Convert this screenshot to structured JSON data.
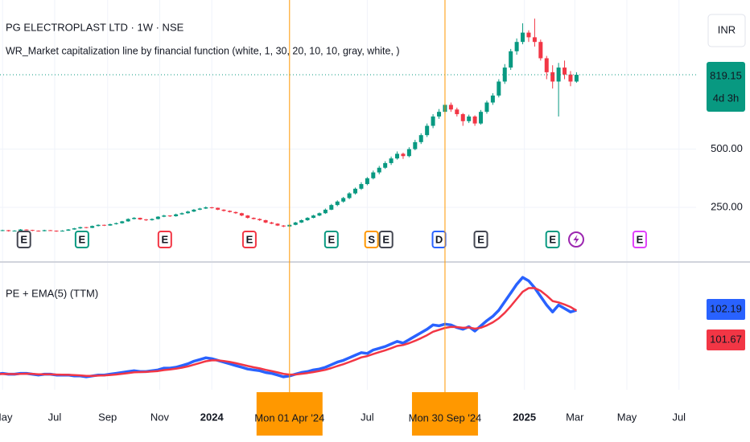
{
  "header": {
    "symbol_title": "PG ELECTROPLAST LTD · 1W · NSE",
    "indicator_title": "WR_Market capitalization line by financial function (white, 1, 30, 20, 10, 10, gray, white, )",
    "currency": "INR"
  },
  "chart_data": [
    {
      "type": "candlestick",
      "up_color": "#089981",
      "down_color": "#f23645",
      "x": [
        "2023-04-24",
        "2023-05-01",
        "2023-05-08",
        "2023-05-15",
        "2023-05-22",
        "2023-05-29",
        "2023-06-05",
        "2023-06-12",
        "2023-06-19",
        "2023-06-26",
        "2023-07-03",
        "2023-07-10",
        "2023-07-17",
        "2023-07-24",
        "2023-07-31",
        "2023-08-07",
        "2023-08-14",
        "2023-08-21",
        "2023-08-28",
        "2023-09-04",
        "2023-09-11",
        "2023-09-18",
        "2023-09-25",
        "2023-10-02",
        "2023-10-09",
        "2023-10-16",
        "2023-10-23",
        "2023-10-30",
        "2023-11-06",
        "2023-11-13",
        "2023-11-20",
        "2023-11-27",
        "2023-12-04",
        "2023-12-11",
        "2023-12-18",
        "2023-12-25",
        "2024-01-01",
        "2024-01-08",
        "2024-01-15",
        "2024-01-22",
        "2024-01-29",
        "2024-02-05",
        "2024-02-12",
        "2024-02-19",
        "2024-02-26",
        "2024-03-04",
        "2024-03-11",
        "2024-03-18",
        "2024-03-25",
        "2024-04-01",
        "2024-04-08",
        "2024-04-15",
        "2024-04-22",
        "2024-04-29",
        "2024-05-06",
        "2024-05-13",
        "2024-05-20",
        "2024-05-27",
        "2024-06-03",
        "2024-06-10",
        "2024-06-17",
        "2024-06-24",
        "2024-07-01",
        "2024-07-08",
        "2024-07-15",
        "2024-07-22",
        "2024-07-29",
        "2024-08-05",
        "2024-08-12",
        "2024-08-19",
        "2024-08-26",
        "2024-09-02",
        "2024-09-09",
        "2024-09-16",
        "2024-09-23",
        "2024-09-30",
        "2024-10-07",
        "2024-10-14",
        "2024-10-21",
        "2024-10-28",
        "2024-11-04",
        "2024-11-11",
        "2024-11-18",
        "2024-11-25",
        "2024-12-02",
        "2024-12-09",
        "2024-12-16",
        "2024-12-23",
        "2024-12-30",
        "2025-01-06",
        "2025-01-13",
        "2025-01-20",
        "2025-01-27",
        "2025-02-03",
        "2025-02-10",
        "2025-02-17",
        "2025-02-24",
        "2025-03-03"
      ],
      "ohlc": [
        [
          148,
          153,
          146,
          150
        ],
        [
          150,
          154,
          148,
          152
        ],
        [
          152,
          153,
          146,
          148
        ],
        [
          148,
          152,
          147,
          150
        ],
        [
          150,
          157,
          149,
          155
        ],
        [
          155,
          156,
          151,
          153
        ],
        [
          153,
          154,
          148,
          150
        ],
        [
          150,
          151,
          146,
          148
        ],
        [
          148,
          154,
          147,
          152
        ],
        [
          152,
          153,
          149,
          150
        ],
        [
          150,
          151,
          145,
          147
        ],
        [
          147,
          152,
          146,
          150
        ],
        [
          150,
          157,
          149,
          155
        ],
        [
          155,
          162,
          154,
          160
        ],
        [
          160,
          167,
          158,
          165
        ],
        [
          165,
          166,
          160,
          162
        ],
        [
          162,
          172,
          161,
          170
        ],
        [
          170,
          177,
          168,
          175
        ],
        [
          175,
          176,
          170,
          172
        ],
        [
          172,
          180,
          171,
          178
        ],
        [
          178,
          185,
          176,
          182
        ],
        [
          182,
          192,
          180,
          190
        ],
        [
          190,
          203,
          188,
          200
        ],
        [
          200,
          208,
          198,
          205
        ],
        [
          205,
          206,
          196,
          198
        ],
        [
          198,
          200,
          192,
          195
        ],
        [
          195,
          203,
          193,
          200
        ],
        [
          200,
          212,
          198,
          210
        ],
        [
          210,
          218,
          208,
          215
        ],
        [
          215,
          216,
          209,
          212
        ],
        [
          212,
          223,
          210,
          220
        ],
        [
          220,
          228,
          218,
          225
        ],
        [
          225,
          235,
          223,
          232
        ],
        [
          232,
          243,
          230,
          240
        ],
        [
          240,
          248,
          238,
          245
        ],
        [
          245,
          254,
          243,
          250
        ],
        [
          250,
          252,
          245,
          248
        ],
        [
          248,
          249,
          238,
          240
        ],
        [
          240,
          242,
          232,
          235
        ],
        [
          235,
          237,
          228,
          230
        ],
        [
          230,
          232,
          222,
          225
        ],
        [
          225,
          227,
          212,
          215
        ],
        [
          215,
          217,
          202,
          205
        ],
        [
          205,
          207,
          198,
          200
        ],
        [
          200,
          203,
          192,
          195
        ],
        [
          195,
          197,
          182,
          185
        ],
        [
          185,
          188,
          178,
          180
        ],
        [
          180,
          182,
          170,
          172
        ],
        [
          172,
          174,
          165,
          168
        ],
        [
          168,
          178,
          166,
          175
        ],
        [
          175,
          188,
          173,
          185
        ],
        [
          185,
          198,
          183,
          195
        ],
        [
          195,
          208,
          192,
          205
        ],
        [
          205,
          218,
          203,
          215
        ],
        [
          215,
          228,
          212,
          225
        ],
        [
          225,
          245,
          222,
          240
        ],
        [
          240,
          265,
          238,
          260
        ],
        [
          260,
          280,
          255,
          275
        ],
        [
          275,
          295,
          270,
          290
        ],
        [
          290,
          315,
          285,
          310
        ],
        [
          310,
          335,
          305,
          330
        ],
        [
          330,
          358,
          325,
          350
        ],
        [
          350,
          380,
          345,
          375
        ],
        [
          375,
          408,
          370,
          400
        ],
        [
          400,
          428,
          392,
          420
        ],
        [
          420,
          448,
          415,
          440
        ],
        [
          440,
          468,
          432,
          460
        ],
        [
          460,
          490,
          455,
          480
        ],
        [
          480,
          485,
          458,
          470
        ],
        [
          470,
          508,
          465,
          500
        ],
        [
          500,
          540,
          495,
          530
        ],
        [
          530,
          568,
          522,
          560
        ],
        [
          560,
          610,
          552,
          600
        ],
        [
          600,
          650,
          590,
          640
        ],
        [
          640,
          672,
          630,
          660
        ],
        [
          660,
          698,
          650,
          690
        ],
        [
          690,
          700,
          660,
          670
        ],
        [
          670,
          678,
          640,
          650
        ],
        [
          650,
          655,
          600,
          620
        ],
        [
          620,
          648,
          612,
          640
        ],
        [
          640,
          645,
          600,
          610
        ],
        [
          610,
          668,
          605,
          660
        ],
        [
          660,
          708,
          652,
          700
        ],
        [
          700,
          740,
          690,
          730
        ],
        [
          730,
          800,
          722,
          790
        ],
        [
          790,
          865,
          780,
          850
        ],
        [
          850,
          930,
          840,
          920
        ],
        [
          920,
          975,
          905,
          960
        ],
        [
          960,
          1040,
          950,
          1000
        ],
        [
          1000,
          1010,
          960,
          980
        ],
        [
          980,
          1060,
          940,
          960
        ],
        [
          960,
          970,
          880,
          890
        ],
        [
          890,
          900,
          800,
          830
        ],
        [
          830,
          860,
          760,
          790
        ],
        [
          790,
          870,
          640,
          850
        ],
        [
          850,
          880,
          800,
          820
        ],
        [
          820,
          835,
          770,
          790
        ],
        [
          790,
          830,
          785,
          819.15
        ]
      ],
      "xlim": [
        "2023-04-28",
        "2025-07-21"
      ],
      "xticks": [
        {
          "value": "2023-05-01",
          "label": "May"
        },
        {
          "value": "2023-07-01",
          "label": "Jul"
        },
        {
          "value": "2023-09-01",
          "label": "Sep"
        },
        {
          "value": "2023-11-01",
          "label": "Nov"
        },
        {
          "value": "2024-01-01",
          "label": "2024"
        },
        {
          "value": "2024-07-01",
          "label": "Jul"
        },
        {
          "value": "2025-01-01",
          "label": "2025"
        },
        {
          "value": "2025-03-01",
          "label": "Mar"
        },
        {
          "value": "2025-05-01",
          "label": "May"
        },
        {
          "value": "2025-07-01",
          "label": "Jul"
        }
      ],
      "crosshairs": [
        {
          "value": "2024-04-01",
          "label": "Mon 01 Apr '24"
        },
        {
          "value": "2024-09-30",
          "label": "Mon 30 Sep '24"
        }
      ],
      "ylim": [
        19,
        1140
      ],
      "yticks": [
        {
          "value": 250,
          "label": "250.00"
        },
        {
          "value": 500,
          "label": "500.00"
        }
      ],
      "countdown": "4d 3h",
      "grid": true,
      "events": [
        {
          "date": "2023-05-26",
          "label": "E",
          "color": "#434651"
        },
        {
          "date": "2023-08-02",
          "label": "E",
          "color": "#089981"
        },
        {
          "date": "2023-11-07",
          "label": "E",
          "color": "#f23645"
        },
        {
          "date": "2024-02-14",
          "label": "E",
          "color": "#f23645"
        },
        {
          "date": "2024-05-20",
          "label": "E",
          "color": "#089981"
        },
        {
          "date": "2024-07-06",
          "label": "S",
          "color": "#ff9800"
        },
        {
          "date": "2024-07-23",
          "label": "E",
          "color": "#434651"
        },
        {
          "date": "2024-09-23",
          "label": "D",
          "color": "#2962ff"
        },
        {
          "date": "2024-11-11",
          "label": "E",
          "color": "#434651"
        },
        {
          "date": "2025-02-03",
          "label": "E",
          "color": "#089981"
        },
        {
          "date": "2025-05-16",
          "label": "E",
          "color": "#e040fb"
        }
      ]
    },
    {
      "type": "line",
      "title": "PE + EMA(5) (TTM)",
      "ylim": [
        10,
        156
      ],
      "series": [
        {
          "color": "#2962ff",
          "values": [
            28,
            29,
            28,
            28,
            29,
            29,
            28,
            27,
            28,
            28,
            27,
            27,
            27,
            26,
            26,
            25,
            26,
            27,
            27,
            28,
            29,
            30,
            31,
            32,
            31,
            31,
            32,
            33,
            35,
            35,
            36,
            38,
            40,
            43,
            45,
            47,
            46,
            44,
            42,
            40,
            38,
            36,
            34,
            33,
            32,
            30,
            29,
            27,
            25,
            26,
            28,
            30,
            31,
            33,
            34,
            36,
            39,
            42,
            44,
            47,
            50,
            53,
            52,
            56,
            58,
            60,
            63,
            66,
            64,
            68,
            72,
            76,
            80,
            85,
            84,
            86,
            85,
            82,
            80,
            83,
            78,
            84,
            90,
            95,
            102,
            112,
            122,
            132,
            140,
            136,
            128,
            118,
            108,
            100,
            108,
            104,
            100,
            102.19
          ]
        },
        {
          "color": "#f23645",
          "values": [
            28,
            28.3,
            28.2,
            28.1,
            28.4,
            28.6,
            28.4,
            27.9,
            27.9,
            27.9,
            27.6,
            27.4,
            27.3,
            26.9,
            26.6,
            26.1,
            26.1,
            26.4,
            26.6,
            27.1,
            27.7,
            28.5,
            29.3,
            30.2,
            30.5,
            30.7,
            31.1,
            31.7,
            32.8,
            33.5,
            34.4,
            35.6,
            37.1,
            39,
            41,
            43,
            44,
            44,
            43.3,
            42.2,
            40.8,
            39.2,
            37.5,
            36,
            34.7,
            33.1,
            31.7,
            30.1,
            28.4,
            27.6,
            27.7,
            28.5,
            29.3,
            30.5,
            31.7,
            33.1,
            35.1,
            37.4,
            39.6,
            42.1,
            44.7,
            47.5,
            49,
            51.3,
            53.5,
            55.7,
            58.1,
            60.7,
            61.8,
            63.9,
            66.6,
            69.7,
            73.1,
            77.1,
            79.4,
            81.6,
            82.7,
            82.5,
            81.7,
            82.1,
            80.7,
            81.8,
            84.5,
            88,
            92.7,
            99.1,
            106.7,
            115.1,
            123.4,
            127.6,
            127.7,
            124.5,
            119,
            112.7,
            111.1,
            108.7,
            105.8,
            101.67
          ]
        }
      ]
    }
  ]
}
